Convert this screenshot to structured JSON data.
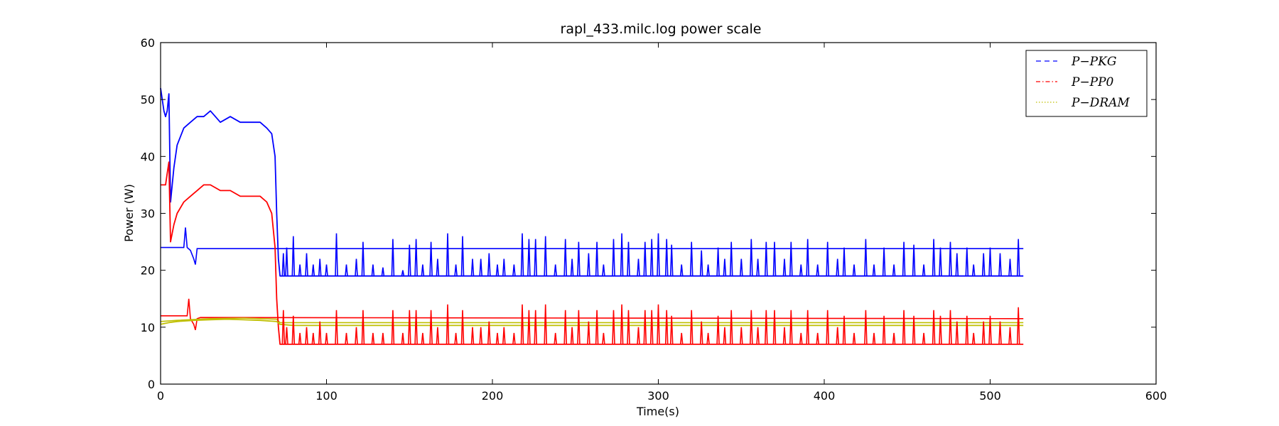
{
  "chart_data": {
    "type": "line",
    "title": "rapl_433.milc.log power scale",
    "xlabel": "Time(s)",
    "ylabel": "Power (W)",
    "xlim": [
      0,
      600
    ],
    "ylim": [
      0,
      60
    ],
    "xticks": [
      0,
      100,
      200,
      300,
      400,
      500,
      600
    ],
    "yticks": [
      0,
      10,
      20,
      30,
      40,
      50,
      60
    ],
    "grid": false,
    "legend_position": "top-right",
    "series": [
      {
        "name": "P−PKG",
        "color": "#0000ff",
        "style": "dashed",
        "x": [
          0,
          2,
          3,
          4,
          5,
          6,
          8,
          10,
          14,
          18,
          22,
          26,
          30,
          36,
          42,
          48,
          54,
          60,
          64,
          67,
          69,
          70,
          71,
          72,
          80,
          100,
          200,
          300,
          400,
          500,
          510,
          515,
          518,
          520
        ],
        "y": [
          52,
          48,
          47,
          48,
          51,
          32,
          38,
          42,
          45,
          46,
          47,
          47,
          48,
          46,
          47,
          46,
          46,
          46,
          45,
          44,
          40,
          30,
          22,
          19,
          19,
          19,
          19,
          19,
          19,
          19,
          19,
          19,
          19,
          19
        ]
      },
      {
        "name": "P−PP0",
        "color": "#ff0000",
        "style": "dashdot",
        "x": [
          0,
          2,
          3,
          4,
          5,
          6,
          8,
          10,
          14,
          18,
          22,
          26,
          30,
          36,
          42,
          48,
          54,
          60,
          64,
          67,
          69,
          70,
          71,
          72,
          80,
          100,
          200,
          300,
          400,
          500,
          510,
          515,
          518,
          520
        ],
        "y": [
          35,
          35,
          35,
          37,
          39,
          25,
          28,
          30,
          32,
          33,
          34,
          35,
          35,
          34,
          34,
          33,
          33,
          33,
          32,
          30,
          24,
          15,
          10,
          7,
          7,
          7,
          7,
          7,
          7,
          7,
          7,
          7,
          7,
          7
        ]
      },
      {
        "name": "P−DRAM",
        "color": "#bfbf00",
        "style": "dotted",
        "x": [
          0,
          5,
          10,
          20,
          30,
          40,
          50,
          60,
          70,
          72,
          80,
          100,
          200,
          300,
          400,
          500,
          520
        ],
        "y": [
          10.5,
          10.8,
          11,
          11.2,
          11.3,
          11.4,
          11.3,
          11.2,
          11,
          10.5,
          10.3,
          10.3,
          10.3,
          10.3,
          10.3,
          10.3,
          10.3
        ]
      }
    ],
    "reference_lines": [
      {
        "color": "#0000ff",
        "x": [
          0,
          14,
          15,
          16,
          18,
          20,
          21,
          22,
          24,
          520
        ],
        "y": [
          24,
          24,
          27.5,
          24,
          23.5,
          22,
          21,
          23.8,
          23.8,
          23.8
        ]
      },
      {
        "color": "#ff0000",
        "x": [
          0,
          16,
          17,
          18,
          20,
          21,
          22,
          24,
          520
        ],
        "y": [
          12,
          12,
          15,
          11.5,
          10.5,
          9.5,
          11.5,
          11.7,
          11.5
        ]
      },
      {
        "color": "#bfbf00",
        "x": [
          0,
          10,
          30,
          50,
          70,
          72,
          100,
          200,
          300,
          400,
          500,
          520
        ],
        "y": [
          11,
          11.2,
          11.5,
          11.6,
          11.4,
          10.8,
          10.8,
          10.8,
          10.8,
          10.8,
          10.8,
          10.8
        ]
      }
    ],
    "spikes": [
      {
        "color": "#0000ff",
        "base": 19,
        "peaks": [
          [
            74,
            23
          ],
          [
            76,
            24
          ],
          [
            80,
            26
          ],
          [
            84,
            21
          ],
          [
            88,
            23
          ],
          [
            92,
            21
          ],
          [
            96,
            22
          ],
          [
            100,
            21
          ],
          [
            106,
            26.5
          ],
          [
            112,
            21
          ],
          [
            118,
            22
          ],
          [
            122,
            25
          ],
          [
            128,
            21
          ],
          [
            134,
            20.5
          ],
          [
            140,
            25.5
          ],
          [
            146,
            20
          ],
          [
            150,
            24.5
          ],
          [
            154,
            25.5
          ],
          [
            158,
            21
          ],
          [
            163,
            25
          ],
          [
            167,
            22
          ],
          [
            173,
            26.5
          ],
          [
            178,
            21
          ],
          [
            182,
            26
          ],
          [
            188,
            22
          ],
          [
            193,
            22
          ],
          [
            198,
            23
          ],
          [
            203,
            21
          ],
          [
            207,
            22
          ],
          [
            213,
            21
          ],
          [
            218,
            26.5
          ],
          [
            222,
            25.5
          ],
          [
            226,
            25.5
          ],
          [
            232,
            26
          ],
          [
            238,
            21
          ],
          [
            244,
            25.5
          ],
          [
            248,
            22
          ],
          [
            252,
            25
          ],
          [
            258,
            23
          ],
          [
            263,
            25
          ],
          [
            267,
            21
          ],
          [
            273,
            25.5
          ],
          [
            278,
            26.5
          ],
          [
            282,
            25
          ],
          [
            288,
            22
          ],
          [
            292,
            25
          ],
          [
            296,
            25.5
          ],
          [
            300,
            26.5
          ],
          [
            305,
            25.5
          ],
          [
            308,
            24.5
          ],
          [
            314,
            21
          ],
          [
            320,
            25
          ],
          [
            326,
            23.5
          ],
          [
            330,
            21
          ],
          [
            336,
            24
          ],
          [
            340,
            22
          ],
          [
            344,
            25
          ],
          [
            350,
            22
          ],
          [
            356,
            25.5
          ],
          [
            360,
            22
          ],
          [
            365,
            25
          ],
          [
            370,
            25
          ],
          [
            376,
            22
          ],
          [
            380,
            25
          ],
          [
            386,
            21
          ],
          [
            390,
            25.5
          ],
          [
            396,
            21
          ],
          [
            402,
            25
          ],
          [
            408,
            22
          ],
          [
            412,
            24
          ],
          [
            418,
            21
          ],
          [
            425,
            25.5
          ],
          [
            430,
            21
          ],
          [
            436,
            24
          ],
          [
            442,
            21
          ],
          [
            448,
            25
          ],
          [
            454,
            24.5
          ],
          [
            460,
            21
          ],
          [
            466,
            25.5
          ],
          [
            470,
            24
          ],
          [
            476,
            25
          ],
          [
            480,
            23
          ],
          [
            486,
            24
          ],
          [
            490,
            21
          ],
          [
            496,
            23
          ],
          [
            500,
            24
          ],
          [
            506,
            23
          ],
          [
            512,
            22
          ],
          [
            517,
            25.5
          ]
        ]
      },
      {
        "color": "#ff0000",
        "base": 7,
        "peaks": [
          [
            74,
            13
          ],
          [
            76,
            10
          ],
          [
            80,
            12
          ],
          [
            84,
            9
          ],
          [
            88,
            10
          ],
          [
            92,
            9
          ],
          [
            96,
            11
          ],
          [
            100,
            9
          ],
          [
            106,
            13
          ],
          [
            112,
            9
          ],
          [
            118,
            10
          ],
          [
            122,
            13
          ],
          [
            128,
            9
          ],
          [
            134,
            9
          ],
          [
            140,
            13
          ],
          [
            146,
            9
          ],
          [
            150,
            13
          ],
          [
            154,
            13
          ],
          [
            158,
            9
          ],
          [
            163,
            13
          ],
          [
            167,
            10
          ],
          [
            173,
            14
          ],
          [
            178,
            9
          ],
          [
            182,
            13
          ],
          [
            188,
            10
          ],
          [
            193,
            10
          ],
          [
            198,
            11
          ],
          [
            203,
            9
          ],
          [
            207,
            10
          ],
          [
            213,
            9
          ],
          [
            218,
            14
          ],
          [
            222,
            13
          ],
          [
            226,
            13
          ],
          [
            232,
            14
          ],
          [
            238,
            9
          ],
          [
            244,
            13
          ],
          [
            248,
            10
          ],
          [
            252,
            13
          ],
          [
            258,
            11
          ],
          [
            263,
            13
          ],
          [
            267,
            9
          ],
          [
            273,
            13
          ],
          [
            278,
            14
          ],
          [
            282,
            13
          ],
          [
            288,
            10
          ],
          [
            292,
            13
          ],
          [
            296,
            13
          ],
          [
            300,
            14
          ],
          [
            305,
            13
          ],
          [
            308,
            12
          ],
          [
            314,
            9
          ],
          [
            320,
            13
          ],
          [
            326,
            11
          ],
          [
            330,
            9
          ],
          [
            336,
            12
          ],
          [
            340,
            10
          ],
          [
            344,
            13
          ],
          [
            350,
            10
          ],
          [
            356,
            13
          ],
          [
            360,
            10
          ],
          [
            365,
            13
          ],
          [
            370,
            13
          ],
          [
            376,
            10
          ],
          [
            380,
            13
          ],
          [
            386,
            9
          ],
          [
            390,
            13
          ],
          [
            396,
            9
          ],
          [
            402,
            13
          ],
          [
            408,
            10
          ],
          [
            412,
            12
          ],
          [
            418,
            9
          ],
          [
            425,
            13
          ],
          [
            430,
            9
          ],
          [
            436,
            12
          ],
          [
            442,
            9
          ],
          [
            448,
            13
          ],
          [
            454,
            12
          ],
          [
            460,
            9
          ],
          [
            466,
            13
          ],
          [
            470,
            12
          ],
          [
            476,
            13
          ],
          [
            480,
            11
          ],
          [
            486,
            12
          ],
          [
            490,
            9
          ],
          [
            496,
            11
          ],
          [
            500,
            12
          ],
          [
            506,
            11
          ],
          [
            512,
            10
          ],
          [
            517,
            13.5
          ]
        ]
      }
    ]
  }
}
